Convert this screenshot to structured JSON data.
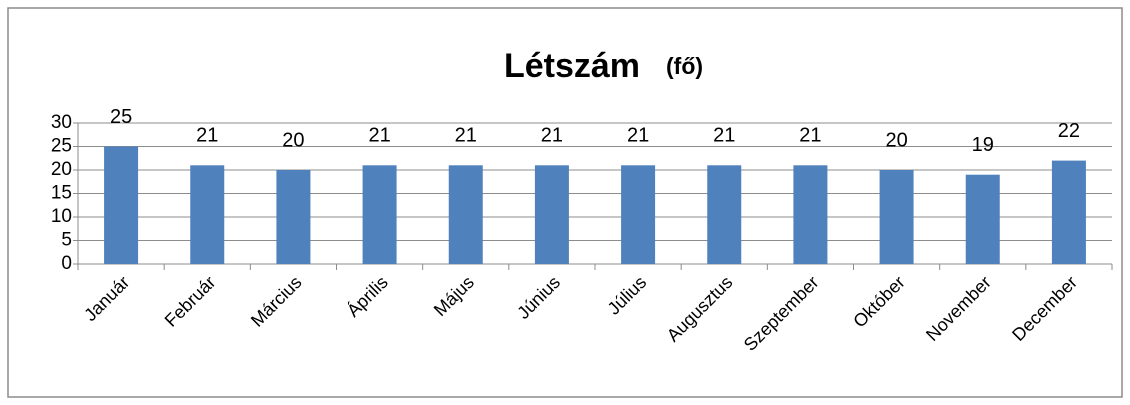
{
  "chart_data": {
    "type": "bar",
    "title": "Létszám",
    "title_unit": "(fő)",
    "categories": [
      "Január",
      "Február",
      "Március",
      "Április",
      "Május",
      "Június",
      "Július",
      "Augusztus",
      "Szeptember",
      "Október",
      "November",
      "December"
    ],
    "values": [
      25,
      21,
      20,
      21,
      21,
      21,
      21,
      21,
      21,
      20,
      19,
      22
    ],
    "color": "#4f81bd",
    "ylim": [
      0,
      30
    ],
    "yticks": [
      0,
      5,
      10,
      15,
      20,
      25,
      30
    ],
    "grid": true
  }
}
